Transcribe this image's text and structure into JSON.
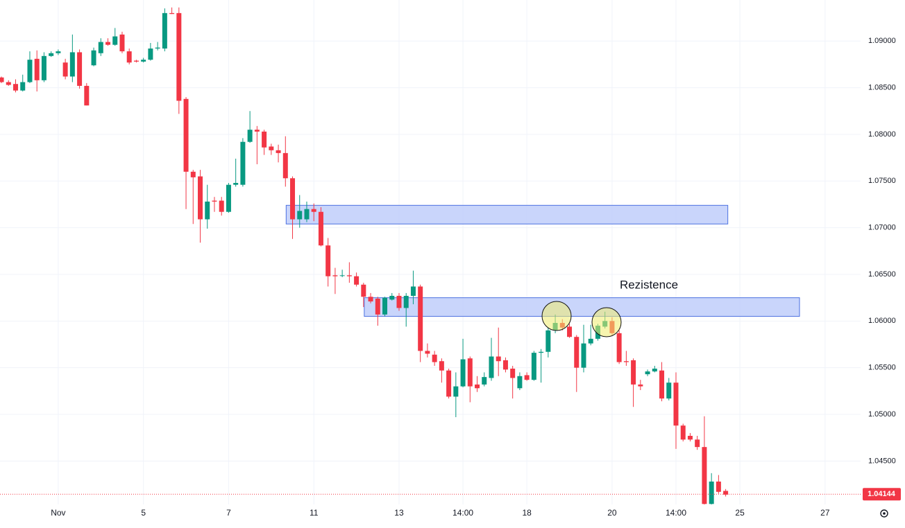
{
  "chart_data": {
    "type": "candlestick",
    "annotation": "Rezistence",
    "up_color": "#089981",
    "down_color": "#f23645",
    "grid": true,
    "xlim": [
      -0.2,
      121
    ],
    "ylim": [
      1.0402,
      1.0944
    ],
    "xticks": [
      {
        "value": 8,
        "label": "Nov"
      },
      {
        "value": 20,
        "label": "5"
      },
      {
        "value": 32,
        "label": "7"
      },
      {
        "value": 44,
        "label": "11"
      },
      {
        "value": 56,
        "label": "13"
      },
      {
        "value": 65,
        "label": "14:00"
      },
      {
        "value": 74,
        "label": "18"
      },
      {
        "value": 86,
        "label": "20"
      },
      {
        "value": 95,
        "label": "14:00"
      },
      {
        "value": 104,
        "label": "25"
      },
      {
        "value": 116,
        "label": "27"
      }
    ],
    "yticks": [
      {
        "value": 1.045,
        "label": "1.04500"
      },
      {
        "value": 1.05,
        "label": "1.05000"
      },
      {
        "value": 1.055,
        "label": "1.05500"
      },
      {
        "value": 1.06,
        "label": "1.06000"
      },
      {
        "value": 1.065,
        "label": "1.06500"
      },
      {
        "value": 1.07,
        "label": "1.07000"
      },
      {
        "value": 1.075,
        "label": "1.07500"
      },
      {
        "value": 1.08,
        "label": "1.08000"
      },
      {
        "value": 1.085,
        "label": "1.08500"
      },
      {
        "value": 1.09,
        "label": "1.09000"
      }
    ],
    "last_price": 1.04144,
    "zones": [
      {
        "color": "#c3d0fb",
        "x": [
          40.1,
          102.3
        ],
        "y": [
          1.0704,
          1.0724
        ]
      },
      {
        "color": "#c3d0fb",
        "x": [
          51.1,
          112.4
        ],
        "y": [
          1.0605,
          1.0625
        ]
      }
    ],
    "x": [
      0,
      1,
      2,
      3,
      4,
      5,
      6,
      7,
      8,
      9,
      10,
      11,
      12,
      13,
      14,
      15,
      16,
      17,
      18,
      19,
      20,
      21,
      22,
      23,
      24,
      25,
      26,
      27,
      28,
      29,
      30,
      31,
      32,
      33,
      34,
      35,
      36,
      37,
      38,
      39,
      40,
      41,
      42,
      43,
      44,
      45,
      46,
      47,
      48,
      49,
      50,
      51,
      52,
      53,
      54,
      55,
      56,
      57,
      58,
      59,
      60,
      61,
      62,
      63,
      64,
      65,
      66,
      67,
      68,
      69,
      70,
      71,
      72,
      73,
      74,
      75,
      76,
      77,
      78,
      79,
      80,
      81,
      82,
      83,
      84,
      85,
      86,
      87,
      88,
      89,
      90,
      91,
      92,
      93,
      94,
      95,
      96,
      97,
      98,
      99,
      100,
      101,
      102
    ],
    "open": [
      1.0861,
      1.0856,
      1.0854,
      1.0847,
      1.0856,
      1.0881,
      1.0858,
      1.0884,
      1.0887,
      1.0877,
      1.0862,
      1.0888,
      1.0852,
      1.0874,
      1.0887,
      1.0899,
      1.0896,
      1.0907,
      1.0889,
      1.0879,
      1.0878,
      1.088,
      1.0892,
      1.0892,
      1.093,
      1.093,
      1.0838,
      1.076,
      1.0755,
      1.0709,
      1.0729,
      1.0729,
      1.0717,
      1.0746,
      1.0746,
      1.0792,
      1.0805,
      1.0803,
      1.0787,
      1.0783,
      1.078,
      1.0753,
      1.0709,
      1.0709,
      1.072,
      1.0717,
      1.0681,
      1.0649,
      1.0649,
      1.0649,
      1.0648,
      1.0639,
      1.0626,
      1.0624,
      1.0607,
      1.0623,
      1.0627,
      1.0614,
      1.0627,
      1.0637,
      1.0568,
      1.0564,
      1.0557,
      1.0547,
      1.0519,
      1.053,
      1.056,
      1.0532,
      1.0532,
      1.0539,
      1.0562,
      1.0558,
      1.0549,
      1.0528,
      1.0542,
      1.0537,
      1.0566,
      1.0567,
      1.059,
      1.0598,
      1.0594,
      1.0583,
      1.055,
      1.0576,
      1.0581,
      1.0594,
      1.06,
      1.0587,
      1.0557,
      1.0558,
      1.0532,
      1.0543,
      1.0546,
      1.0547,
      1.0517,
      1.0534,
      1.0488,
      1.0477,
      1.0473,
      1.0465,
      1.0404,
      1.0428,
      1.0418
    ],
    "high": [
      1.0862,
      1.0858,
      1.0859,
      1.0864,
      1.0889,
      1.089,
      1.0888,
      1.0889,
      1.0891,
      1.0881,
      1.0907,
      1.0891,
      1.0855,
      1.0893,
      1.0903,
      1.0903,
      1.0914,
      1.091,
      1.0892,
      1.088,
      1.0882,
      1.0898,
      1.0899,
      1.0935,
      1.0936,
      1.0936,
      1.084,
      1.0762,
      1.0762,
      1.0746,
      1.0733,
      1.0733,
      1.0748,
      1.0774,
      1.0796,
      1.0825,
      1.0809,
      1.0805,
      1.079,
      1.0789,
      1.0798,
      1.0755,
      1.0735,
      1.0728,
      1.0726,
      1.0722,
      1.0689,
      1.0657,
      1.0655,
      1.0663,
      1.0652,
      1.0641,
      1.063,
      1.0626,
      1.0626,
      1.063,
      1.063,
      1.063,
      1.0654,
      1.0639,
      1.0576,
      1.0568,
      1.056,
      1.0549,
      1.0545,
      1.0581,
      1.0562,
      1.0541,
      1.0545,
      1.0582,
      1.0593,
      1.0561,
      1.0552,
      1.0545,
      1.0545,
      1.0568,
      1.057,
      1.0593,
      1.0607,
      1.0602,
      1.0597,
      1.0585,
      1.0596,
      1.0596,
      1.0597,
      1.061,
      1.0604,
      1.059,
      1.0568,
      1.056,
      1.0537,
      1.0548,
      1.0552,
      1.0556,
      1.0539,
      1.0545,
      1.049,
      1.048,
      1.0477,
      1.0498,
      1.0437,
      1.0435,
      1.042
    ],
    "low": [
      1.0855,
      1.0852,
      1.0845,
      1.0846,
      1.0855,
      1.0846,
      1.0856,
      1.0883,
      1.0885,
      1.0859,
      1.0856,
      1.0849,
      1.0831,
      1.0873,
      1.0884,
      1.0895,
      1.0895,
      1.0887,
      1.0875,
      1.0877,
      1.0877,
      1.0879,
      1.089,
      1.0889,
      1.0929,
      1.0822,
      1.072,
      1.0704,
      1.0684,
      1.0699,
      1.0717,
      1.0713,
      1.0716,
      1.0744,
      1.0744,
      1.0791,
      1.0768,
      1.0778,
      1.0778,
      1.077,
      1.0744,
      1.0688,
      1.07,
      1.0706,
      1.0707,
      1.068,
      1.0637,
      1.0629,
      1.0647,
      1.0641,
      1.0637,
      1.0615,
      1.0619,
      1.0595,
      1.0605,
      1.0622,
      1.0611,
      1.0594,
      1.0618,
      1.0556,
      1.0561,
      1.0552,
      1.0534,
      1.0517,
      1.0497,
      1.0529,
      1.0513,
      1.0524,
      1.053,
      1.0536,
      1.0541,
      1.0545,
      1.0517,
      1.0526,
      1.0536,
      1.0536,
      1.0534,
      1.0561,
      1.0587,
      1.059,
      1.0582,
      1.0524,
      1.0545,
      1.0574,
      1.0579,
      1.0592,
      1.0585,
      1.0554,
      1.0552,
      1.0508,
      1.0526,
      1.0541,
      1.0545,
      1.0514,
      1.0515,
      1.0463,
      1.0471,
      1.0471,
      1.0462,
      1.0402,
      1.0402,
      1.0415,
      1.0412
    ],
    "close": [
      1.0856,
      1.0853,
      1.0847,
      1.0856,
      1.088,
      1.0858,
      1.0884,
      1.0887,
      1.0889,
      1.0862,
      1.0888,
      1.0852,
      1.0831,
      1.089,
      1.0899,
      1.0896,
      1.0905,
      1.0889,
      1.0877,
      1.0878,
      1.088,
      1.0892,
      1.0893,
      1.093,
      1.0929,
      1.0836,
      1.076,
      1.0754,
      1.0709,
      1.0728,
      1.0728,
      1.0717,
      1.0746,
      1.0748,
      1.0792,
      1.0805,
      1.0803,
      1.0786,
      1.0783,
      1.078,
      1.0753,
      1.0709,
      1.0718,
      1.072,
      1.0717,
      1.0681,
      1.0648,
      1.0648,
      1.0649,
      1.0648,
      1.0639,
      1.0626,
      1.0621,
      1.0607,
      1.0625,
      1.0627,
      1.0614,
      1.0627,
      1.0637,
      1.0568,
      1.0565,
      1.0556,
      1.0547,
      1.0519,
      1.053,
      1.0559,
      1.053,
      1.0528,
      1.054,
      1.0562,
      1.0557,
      1.0548,
      1.0539,
      1.0541,
      1.0537,
      1.0566,
      1.0567,
      1.059,
      1.0598,
      1.0593,
      1.0583,
      1.055,
      1.0576,
      1.0581,
      1.0595,
      1.06,
      1.0587,
      1.0556,
      1.0556,
      1.0532,
      1.053,
      1.0546,
      1.0549,
      1.0517,
      1.0534,
      1.0488,
      1.0473,
      1.0473,
      1.0465,
      1.0404,
      1.0428,
      1.0417,
      1.0414
    ]
  }
}
